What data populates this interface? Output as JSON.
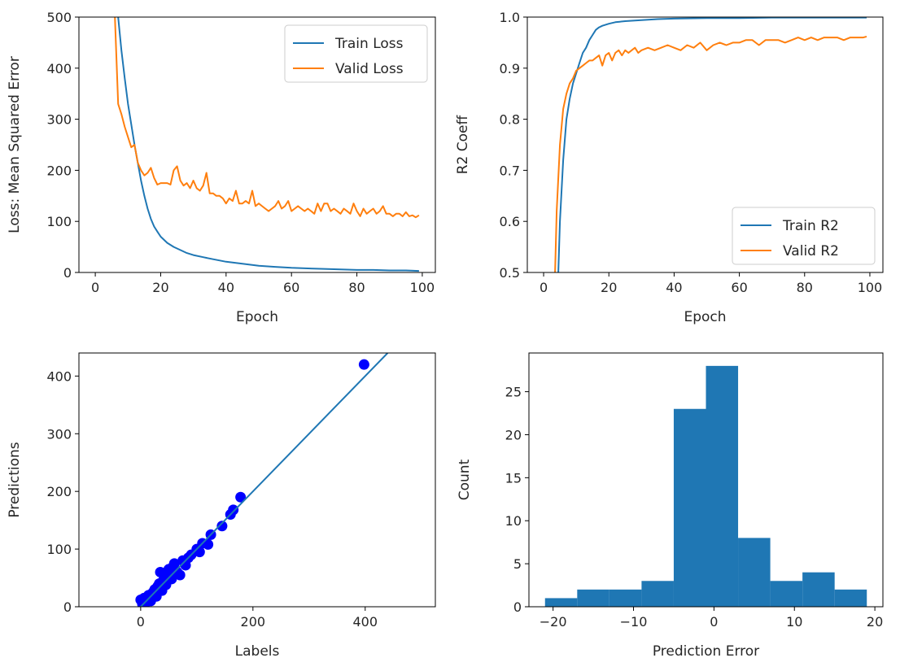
{
  "chart_data": [
    {
      "type": "line",
      "xlabel": "Epoch",
      "ylabel": "Loss: Mean Squared Error",
      "xlim": [
        -5,
        104
      ],
      "ylim": [
        0,
        500
      ],
      "xticks": [
        0,
        20,
        40,
        60,
        80,
        100
      ],
      "yticks": [
        0,
        100,
        200,
        300,
        400,
        500
      ],
      "legend": {
        "placement": "top-right"
      },
      "series": [
        {
          "name": "Train Loss",
          "color": "#1f77b4",
          "x": [
            7,
            8,
            9,
            10,
            11,
            12,
            13,
            14,
            15,
            16,
            17,
            18,
            19,
            20,
            22,
            24,
            26,
            28,
            30,
            33,
            36,
            40,
            45,
            50,
            55,
            60,
            65,
            70,
            75,
            80,
            85,
            90,
            95,
            99
          ],
          "y": [
            500,
            435,
            380,
            330,
            290,
            250,
            215,
            180,
            150,
            125,
            105,
            90,
            80,
            70,
            58,
            50,
            44,
            38,
            34,
            30,
            26,
            21,
            17,
            13,
            11,
            9,
            8,
            7,
            6,
            5,
            5,
            4,
            4,
            3
          ]
        },
        {
          "name": "Valid Loss",
          "color": "#ff7f0e",
          "x": [
            6,
            7,
            8,
            9,
            10,
            11,
            12,
            13,
            14,
            15,
            16,
            17,
            18,
            19,
            20,
            21,
            22,
            23,
            24,
            25,
            26,
            27,
            28,
            29,
            30,
            31,
            32,
            33,
            34,
            35,
            36,
            37,
            38,
            39,
            40,
            41,
            42,
            43,
            44,
            45,
            46,
            47,
            48,
            49,
            50,
            51,
            52,
            53,
            54,
            55,
            56,
            57,
            58,
            59,
            60,
            61,
            62,
            63,
            64,
            65,
            66,
            67,
            68,
            69,
            70,
            71,
            72,
            73,
            74,
            75,
            76,
            77,
            78,
            79,
            80,
            81,
            82,
            83,
            84,
            85,
            86,
            87,
            88,
            89,
            90,
            91,
            92,
            93,
            94,
            95,
            96,
            97,
            98,
            99
          ],
          "y": [
            500,
            330,
            310,
            285,
            265,
            245,
            250,
            215,
            200,
            190,
            195,
            205,
            185,
            172,
            175,
            175,
            175,
            172,
            200,
            208,
            180,
            170,
            175,
            165,
            180,
            165,
            160,
            170,
            195,
            155,
            155,
            150,
            150,
            145,
            135,
            145,
            140,
            160,
            135,
            135,
            140,
            135,
            160,
            130,
            135,
            130,
            125,
            120,
            125,
            130,
            140,
            125,
            130,
            140,
            120,
            125,
            130,
            125,
            120,
            125,
            120,
            115,
            135,
            120,
            135,
            135,
            120,
            125,
            120,
            115,
            125,
            120,
            115,
            135,
            120,
            110,
            125,
            115,
            120,
            125,
            115,
            120,
            130,
            115,
            115,
            110,
            115,
            115,
            110,
            118,
            110,
            112,
            108,
            112
          ]
        }
      ]
    },
    {
      "type": "line",
      "xlabel": "Epoch",
      "ylabel": "R2 Coeff",
      "xlim": [
        -5,
        104
      ],
      "ylim": [
        0.5,
        1.0
      ],
      "xticks": [
        0,
        20,
        40,
        60,
        80,
        100
      ],
      "yticks": [
        0.5,
        0.6,
        0.7,
        0.8,
        0.9,
        1.0
      ],
      "legend": {
        "placement": "bottom-right"
      },
      "series": [
        {
          "name": "Train R2",
          "color": "#1f77b4",
          "x": [
            4.5,
            5,
            6,
            7,
            8,
            9,
            10,
            11,
            12,
            13,
            14,
            15,
            16,
            17,
            18,
            20,
            22,
            25,
            30,
            35,
            40,
            50,
            60,
            70,
            80,
            90,
            99
          ],
          "y": [
            0.5,
            0.6,
            0.72,
            0.8,
            0.84,
            0.87,
            0.89,
            0.91,
            0.93,
            0.94,
            0.955,
            0.965,
            0.975,
            0.98,
            0.983,
            0.987,
            0.99,
            0.992,
            0.994,
            0.996,
            0.997,
            0.998,
            0.998,
            0.999,
            0.999,
            0.999,
            0.999
          ]
        },
        {
          "name": "Valid R2",
          "color": "#ff7f0e",
          "x": [
            3.5,
            4,
            5,
            6,
            7,
            8,
            9,
            10,
            11,
            12,
            13,
            14,
            15,
            16,
            17,
            18,
            19,
            20,
            21,
            22,
            23,
            24,
            25,
            26,
            27,
            28,
            29,
            30,
            32,
            34,
            36,
            38,
            40,
            42,
            44,
            46,
            48,
            50,
            52,
            54,
            56,
            58,
            60,
            62,
            64,
            66,
            68,
            70,
            72,
            74,
            76,
            78,
            80,
            82,
            84,
            86,
            88,
            90,
            92,
            94,
            96,
            98,
            99
          ],
          "y": [
            0.5,
            0.62,
            0.75,
            0.82,
            0.85,
            0.87,
            0.88,
            0.895,
            0.9,
            0.905,
            0.91,
            0.915,
            0.915,
            0.92,
            0.925,
            0.905,
            0.925,
            0.93,
            0.915,
            0.93,
            0.935,
            0.925,
            0.935,
            0.93,
            0.935,
            0.94,
            0.93,
            0.935,
            0.94,
            0.935,
            0.94,
            0.945,
            0.94,
            0.935,
            0.945,
            0.94,
            0.95,
            0.935,
            0.945,
            0.95,
            0.945,
            0.95,
            0.95,
            0.955,
            0.955,
            0.945,
            0.955,
            0.955,
            0.955,
            0.95,
            0.955,
            0.96,
            0.955,
            0.96,
            0.955,
            0.96,
            0.96,
            0.96,
            0.955,
            0.96,
            0.96,
            0.96,
            0.962
          ]
        }
      ]
    },
    {
      "type": "scatter",
      "xlabel": "Labels",
      "ylabel": "Predictions",
      "xlim": [
        -110,
        525
      ],
      "ylim": [
        0,
        440
      ],
      "xticks": [
        0,
        200,
        400
      ],
      "yticks": [
        0,
        100,
        200,
        300,
        400
      ],
      "series": [
        {
          "color": "#0000ff",
          "x": [
            0,
            3,
            6,
            10,
            14,
            18,
            22,
            25,
            28,
            30,
            33,
            35,
            38,
            40,
            42,
            45,
            48,
            50,
            55,
            58,
            60,
            65,
            70,
            75,
            80,
            85,
            90,
            100,
            105,
            110,
            120,
            125,
            145,
            160,
            165,
            178,
            398
          ],
          "y": [
            12,
            5,
            15,
            8,
            20,
            10,
            25,
            30,
            18,
            35,
            40,
            60,
            28,
            45,
            50,
            38,
            55,
            65,
            48,
            70,
            75,
            60,
            55,
            80,
            72,
            85,
            90,
            100,
            95,
            110,
            108,
            125,
            140,
            160,
            168,
            190,
            420
          ]
        },
        {
          "color": "#1f77b4",
          "x": [
            -10,
            440
          ],
          "y": [
            -10,
            440
          ]
        }
      ]
    },
    {
      "type": "bar",
      "xlabel": "Prediction Error",
      "ylabel": "Count",
      "xlim": [
        -23,
        21
      ],
      "ylim": [
        0,
        29.5
      ],
      "xticks": [
        -20,
        -10,
        0,
        10,
        20
      ],
      "xticklabels": [
        "−20",
        "−10",
        "0",
        "10",
        "20"
      ],
      "yticks": [
        0,
        5,
        10,
        15,
        20,
        25
      ],
      "color": "#1f77b4",
      "bin_edges": [
        -21,
        -17,
        -13,
        -9,
        -5,
        -1,
        3,
        7,
        11,
        15,
        19
      ],
      "values": [
        1,
        2,
        2,
        3,
        23,
        28,
        8,
        3,
        4,
        2
      ]
    }
  ]
}
